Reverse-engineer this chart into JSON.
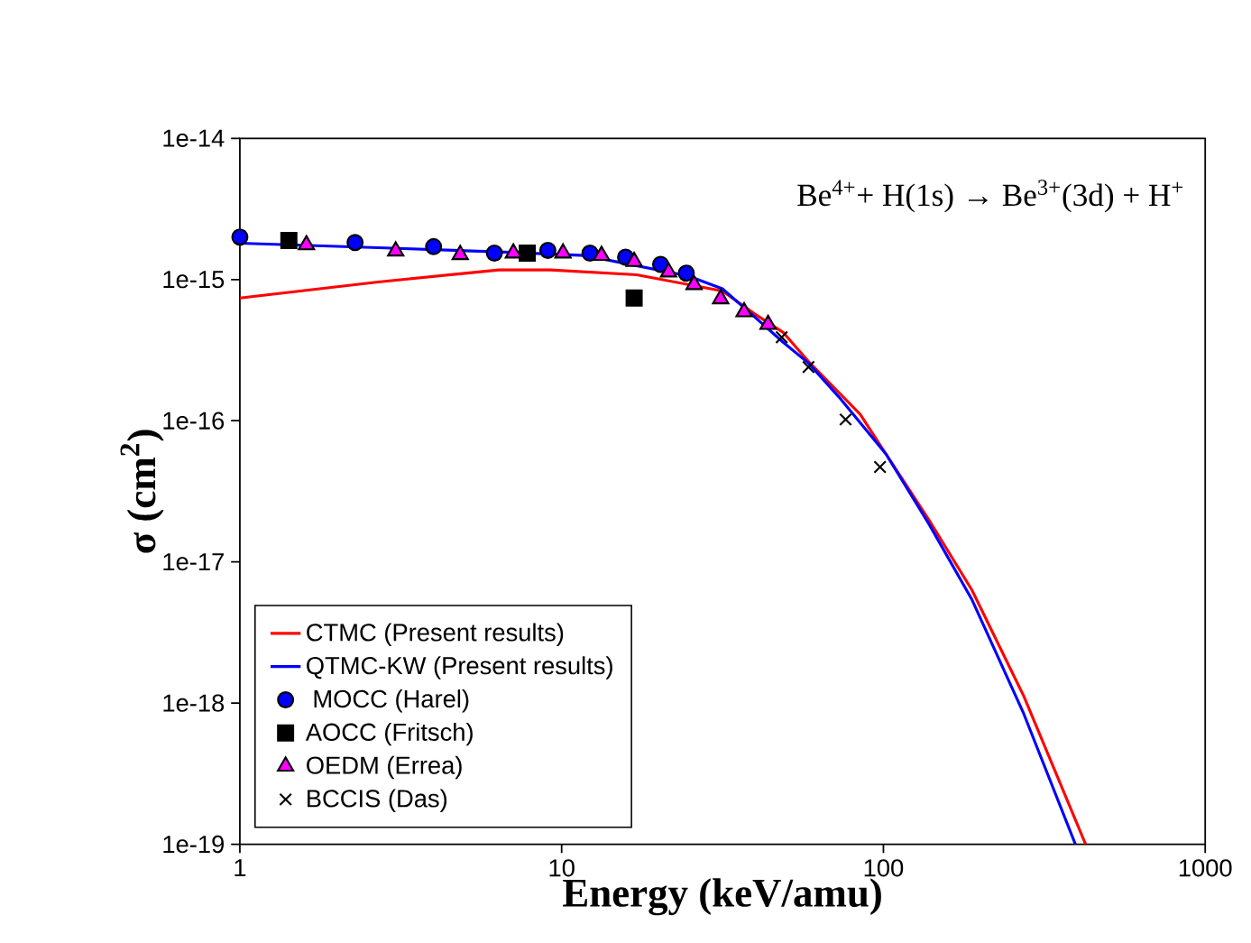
{
  "chart_data": {
    "type": "line",
    "xlabel": "Energy (keV/amu)",
    "ylabel": "σ (cm$^{2}$)",
    "annotations": [
      "Be$^{4+}$+ H(1s) → Be$^{3+}$(3d) + H$^{+}$"
    ],
    "log": "xy",
    "xlim": [
      1,
      1000
    ],
    "ylim": [
      1e-19,
      1e-14
    ],
    "xticks": [
      1,
      10,
      100,
      1000
    ],
    "yticks": [
      {
        "value": 1e-19,
        "label": "1e-19"
      },
      {
        "value": 1e-18,
        "label": "1e-18"
      },
      {
        "value": 1e-17,
        "label": "1e-17"
      },
      {
        "value": 1e-16,
        "label": "1e-16"
      },
      {
        "value": 1e-15,
        "label": "1e-15"
      },
      {
        "value": 1e-14,
        "label": "1e-14"
      }
    ],
    "legend": "bottom left",
    "series": [
      {
        "name": "CTMC (Present results)",
        "color": "#ff0000",
        "x": [
          1,
          2.69,
          6.38,
          9.23,
          17.1,
          31.6,
          40.5,
          48.7,
          58.5,
          72.6,
          84.7,
          101.9,
          138.6,
          188.5,
          273,
          425
        ],
        "values": [
          7.4e-16,
          9.6e-16,
          1.17e-15,
          1.17e-15,
          1.08e-15,
          8.3e-16,
          5.56e-16,
          4.24e-16,
          2.63e-16,
          1.59e-16,
          1.11e-16,
          5.8e-17,
          1.98e-17,
          6.3e-18,
          1.12e-18,
          1e-19
        ]
      },
      {
        "name": "QTMC-KW (Present results)",
        "color": "#0000ff",
        "x": [
          1,
          2.69,
          6.38,
          11.8,
          24.7,
          31.6,
          40.5,
          48.7,
          58.5,
          72.6,
          101.9,
          138.6,
          188.5,
          273,
          395
        ],
        "values": [
          1.81e-15,
          1.68e-15,
          1.57e-15,
          1.48e-15,
          1.06e-15,
          8.6e-16,
          5.25e-16,
          3.61e-16,
          2.56e-16,
          1.48e-16,
          5.8e-17,
          1.85e-17,
          5.4e-18,
          8.4e-19,
          1e-19
        ]
      },
      {
        "name": " MOCC (Harel)",
        "type": "scatter",
        "marker": "circle",
        "color": "#0000ff",
        "x": [
          1,
          2.28,
          4.0,
          6.18,
          9.06,
          12.25,
          15.8,
          20.3,
          24.4
        ],
        "values": [
          2e-15,
          1.83e-15,
          1.71e-15,
          1.54e-15,
          1.61e-15,
          1.54e-15,
          1.44e-15,
          1.28e-15,
          1.11e-15
        ]
      },
      {
        "name": "AOCC (Fritsch)",
        "type": "scatter",
        "marker": "square",
        "color": "#000000",
        "x": [
          1.42,
          7.82,
          16.8
        ],
        "values": [
          1.89e-15,
          1.54e-15,
          7.4e-16
        ]
      },
      {
        "name": "OEDM (Errea)",
        "type": "scatter",
        "marker": "triangle",
        "color": "#ff00ff",
        "x": [
          1.61,
          3.05,
          4.84,
          7.08,
          10.1,
          13.3,
          16.8,
          21.5,
          25.8,
          31.2,
          36.9,
          43.8
        ],
        "values": [
          1.76e-15,
          1.59e-15,
          1.5e-15,
          1.54e-15,
          1.54e-15,
          1.48e-15,
          1.34e-15,
          1.13e-15,
          9.2e-16,
          7.3e-16,
          5.9e-16,
          4.8e-16
        ]
      },
      {
        "name": "BCCIS (Das)",
        "type": "scatter",
        "marker": "cross",
        "color": "#000000",
        "x": [
          48.3,
          58.5,
          76.3,
          97.6
        ],
        "values": [
          3.9e-16,
          2.4e-16,
          1.02e-16,
          4.7e-17
        ]
      }
    ]
  }
}
